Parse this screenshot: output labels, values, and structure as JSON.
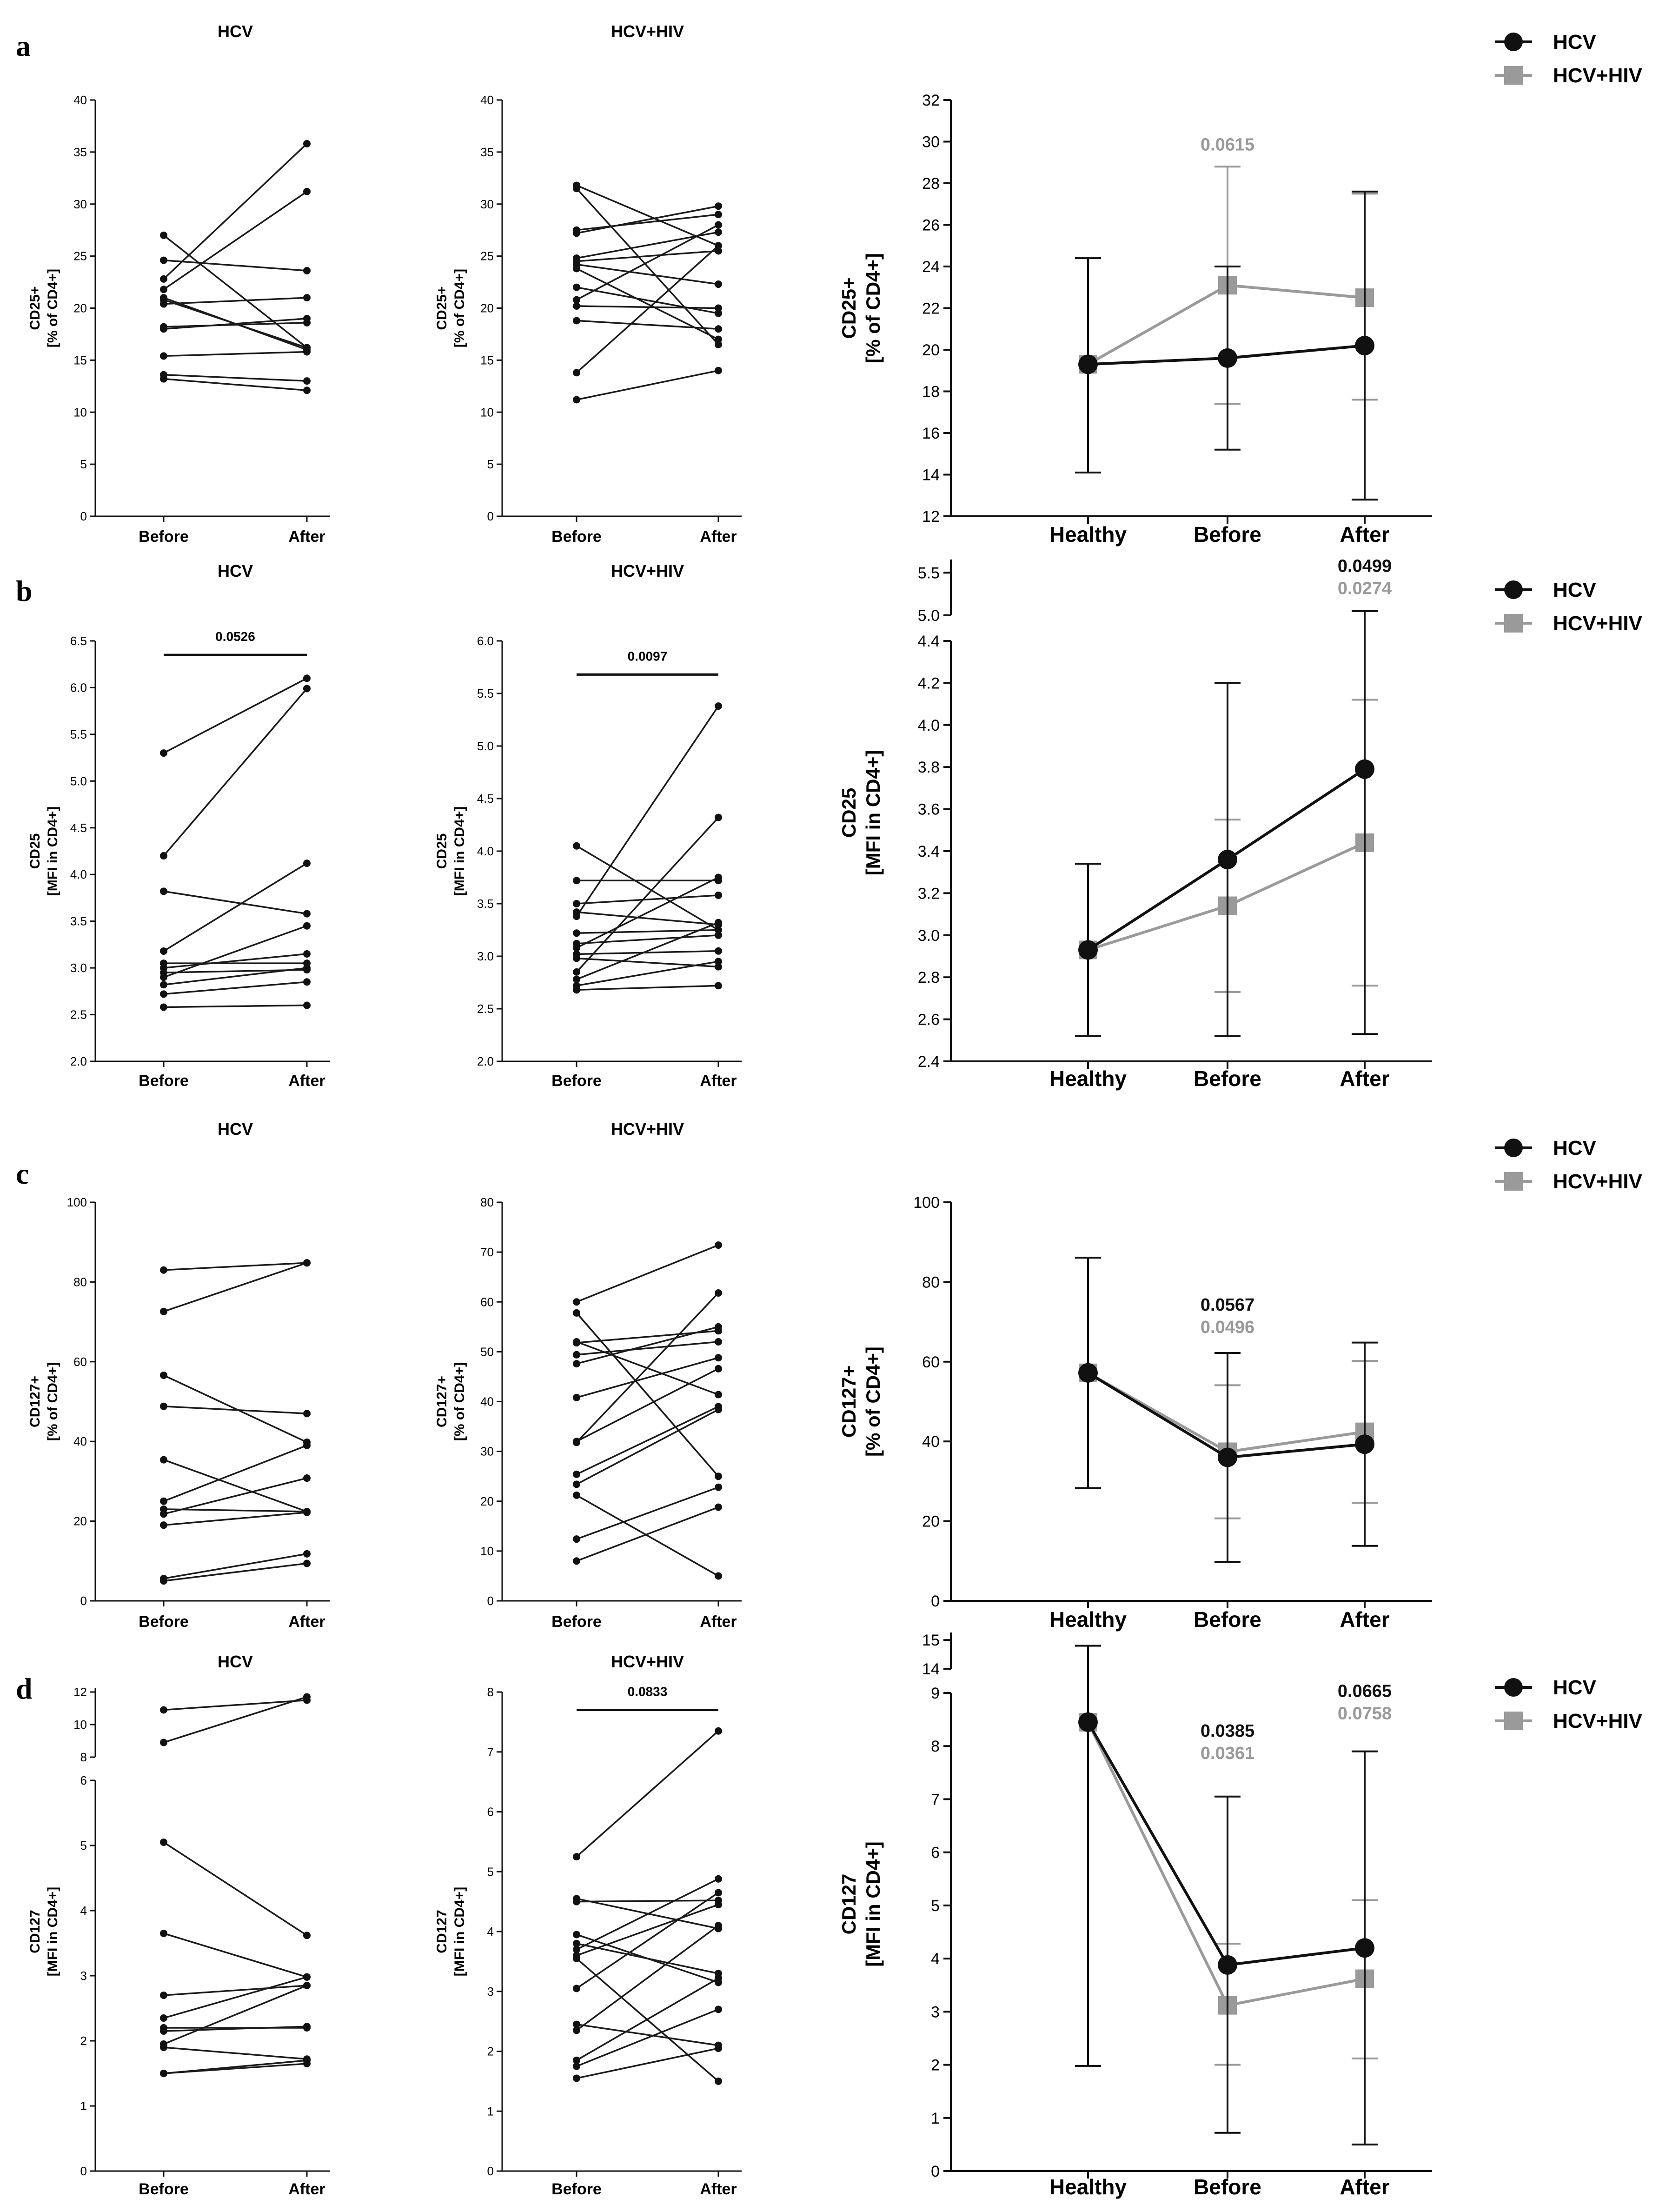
{
  "colors": {
    "hcv": "#111111",
    "hiv": "#9a9a9a",
    "axis": "#111111",
    "line": "#1a1a1a"
  },
  "legend": {
    "hcv": "HCV",
    "hiv": "HCV+HIV"
  },
  "chart_data": [
    {
      "id": "a-hcv",
      "type": "line",
      "panel": "a",
      "title": "HCV",
      "ylabel": [
        "CD25+",
        "[% of CD4+]"
      ],
      "categories": [
        "Before",
        "After"
      ],
      "ylim": [
        0,
        40
      ],
      "yticks": [
        0,
        5,
        10,
        15,
        20,
        25,
        30,
        35,
        40
      ],
      "pairs": [
        [
          27.0,
          16.2
        ],
        [
          24.6,
          23.6
        ],
        [
          22.8,
          35.8
        ],
        [
          21.8,
          31.2
        ],
        [
          20.8,
          16.2
        ],
        [
          20.4,
          21.0
        ],
        [
          18.2,
          18.6
        ],
        [
          18.0,
          19.0
        ],
        [
          15.4,
          15.8
        ],
        [
          13.6,
          13.0
        ],
        [
          13.2,
          12.1
        ],
        [
          21.0,
          16.0
        ]
      ],
      "bracket": null
    },
    {
      "id": "a-hiv",
      "type": "line",
      "panel": "a",
      "title": "HCV+HIV",
      "ylabel": [
        "CD25+",
        "[% of CD4+]"
      ],
      "categories": [
        "Before",
        "After"
      ],
      "ylim": [
        0,
        40
      ],
      "yticks": [
        0,
        5,
        10,
        15,
        20,
        25,
        30,
        35,
        40
      ],
      "pairs": [
        [
          31.8,
          26.0
        ],
        [
          31.5,
          16.5
        ],
        [
          27.5,
          29.0
        ],
        [
          27.2,
          29.8
        ],
        [
          24.8,
          27.3
        ],
        [
          24.5,
          25.5
        ],
        [
          24.2,
          22.3
        ],
        [
          23.8,
          17.0
        ],
        [
          22.0,
          19.5
        ],
        [
          20.8,
          28.0
        ],
        [
          20.2,
          20.0
        ],
        [
          18.8,
          18.0
        ],
        [
          13.8,
          26.0
        ],
        [
          11.2,
          14.0
        ]
      ],
      "bracket": null
    },
    {
      "id": "a-sum",
      "type": "line",
      "panel": "a",
      "title": "",
      "ylabel": [
        "CD25+",
        "[% of CD4+]"
      ],
      "categories": [
        "Healthy",
        "Before",
        "After"
      ],
      "ylim": [
        12,
        32
      ],
      "yticks": [
        12,
        14,
        16,
        18,
        20,
        22,
        24,
        26,
        28,
        30,
        32
      ],
      "break": null,
      "series": [
        {
          "name": "HCV",
          "values": [
            19.3,
            19.6,
            20.2
          ],
          "err_low": [
            14.1,
            15.2,
            12.8
          ],
          "err_high": [
            24.4,
            24.0,
            27.6
          ]
        },
        {
          "name": "HCV+HIV",
          "values": [
            19.3,
            23.1,
            22.5
          ],
          "err_low": [
            14.1,
            17.4,
            17.6
          ],
          "err_high": [
            24.4,
            28.8,
            27.5
          ]
        }
      ],
      "annotations": [
        {
          "cat": 1,
          "hcv": "",
          "hiv": "0.0615",
          "y": 30.2
        }
      ]
    },
    {
      "id": "b-hcv",
      "type": "line",
      "panel": "b",
      "title": "HCV",
      "ylabel": [
        "CD25",
        "[MFI in CD4+]"
      ],
      "categories": [
        "Before",
        "After"
      ],
      "ylim": [
        2.0,
        6.5
      ],
      "yticks": [
        2.0,
        2.5,
        3.0,
        3.5,
        4.0,
        4.5,
        5.0,
        5.5,
        6.0,
        6.5
      ],
      "pairs": [
        [
          5.3,
          6.1
        ],
        [
          4.2,
          5.99
        ],
        [
          3.82,
          3.58
        ],
        [
          3.18,
          4.12
        ],
        [
          3.05,
          3.05
        ],
        [
          3.0,
          3.15
        ],
        [
          2.95,
          2.98
        ],
        [
          2.9,
          3.45
        ],
        [
          2.82,
          3.0
        ],
        [
          2.72,
          2.85
        ],
        [
          2.58,
          2.6
        ]
      ],
      "bracket": {
        "label": "0.0526",
        "y": 6.35
      }
    },
    {
      "id": "b-hiv",
      "type": "line",
      "panel": "b",
      "title": "HCV+HIV",
      "ylabel": [
        "CD25",
        "[MFI in CD4+]"
      ],
      "categories": [
        "Before",
        "After"
      ],
      "ylim": [
        2.0,
        6.0
      ],
      "yticks": [
        2.0,
        2.5,
        3.0,
        3.5,
        4.0,
        4.5,
        5.0,
        5.5,
        6.0
      ],
      "pairs": [
        [
          4.05,
          3.25
        ],
        [
          3.72,
          3.72
        ],
        [
          3.5,
          3.58
        ],
        [
          3.42,
          3.3
        ],
        [
          3.38,
          5.38
        ],
        [
          3.22,
          3.25
        ],
        [
          3.12,
          3.2
        ],
        [
          3.08,
          3.75
        ],
        [
          3.02,
          3.05
        ],
        [
          2.98,
          2.9
        ],
        [
          2.85,
          4.32
        ],
        [
          2.78,
          3.32
        ],
        [
          2.72,
          2.95
        ],
        [
          2.68,
          2.72
        ]
      ],
      "bracket": {
        "label": "0.0097",
        "y": 5.68
      }
    },
    {
      "id": "b-sum",
      "type": "line",
      "panel": "b",
      "title": "",
      "ylabel": [
        "CD25",
        "[MFI in CD4+]"
      ],
      "categories": [
        "Healthy",
        "Before",
        "After"
      ],
      "ylim": [
        2.4,
        4.4
      ],
      "yticks": [
        2.4,
        2.6,
        2.8,
        3.0,
        3.2,
        3.4,
        3.6,
        3.8,
        4.0,
        4.2,
        4.4
      ],
      "break": {
        "upper_ticks": [
          5.0,
          5.5
        ],
        "upper_range": [
          5.0,
          5.6
        ]
      },
      "series": [
        {
          "name": "HCV",
          "values": [
            2.93,
            3.36,
            3.79
          ],
          "err_low": [
            2.52,
            2.52,
            2.53
          ],
          "err_high": [
            3.34,
            4.2,
            5.05
          ]
        },
        {
          "name": "HCV+HIV",
          "values": [
            2.93,
            3.14,
            3.44
          ],
          "err_low": [
            2.52,
            2.73,
            2.76
          ],
          "err_high": [
            3.34,
            3.55,
            4.12
          ]
        }
      ],
      "annotations": [
        {
          "cat": 2,
          "hcv": "0.0499",
          "hiv": "0.0274",
          "y": 5.4
        }
      ]
    },
    {
      "id": "c-hcv",
      "type": "line",
      "panel": "c",
      "title": "HCV",
      "ylabel": [
        "CD127+",
        "[% of CD4+]"
      ],
      "categories": [
        "Before",
        "After"
      ],
      "ylim": [
        0,
        100
      ],
      "yticks": [
        0,
        20,
        40,
        60,
        80,
        100
      ],
      "pairs": [
        [
          83.0,
          84.8
        ],
        [
          72.6,
          84.8
        ],
        [
          56.6,
          39.8
        ],
        [
          48.8,
          47.0
        ],
        [
          35.4,
          22.4
        ],
        [
          25.0,
          39.0
        ],
        [
          23.0,
          22.4
        ],
        [
          21.8,
          30.8
        ],
        [
          19.0,
          22.2
        ],
        [
          5.6,
          11.8
        ],
        [
          5.0,
          9.4
        ]
      ],
      "bracket": null
    },
    {
      "id": "c-hiv",
      "type": "line",
      "panel": "c",
      "title": "HCV+HIV",
      "ylabel": [
        "CD127+",
        "[% of CD4+]"
      ],
      "categories": [
        "Before",
        "After"
      ],
      "ylim": [
        0,
        80
      ],
      "yticks": [
        0,
        10,
        20,
        30,
        40,
        50,
        60,
        70,
        80
      ],
      "pairs": [
        [
          60.0,
          71.4
        ],
        [
          57.8,
          25.0
        ],
        [
          52.0,
          41.4
        ],
        [
          51.8,
          54.2
        ],
        [
          49.4,
          52.0
        ],
        [
          47.6,
          55.0
        ],
        [
          40.8,
          48.8
        ],
        [
          32.0,
          46.6
        ],
        [
          31.8,
          61.8
        ],
        [
          25.4,
          39.0
        ],
        [
          23.4,
          38.4
        ],
        [
          21.2,
          5.0
        ],
        [
          12.4,
          22.8
        ],
        [
          8.0,
          18.8
        ]
      ],
      "bracket": null
    },
    {
      "id": "c-sum",
      "type": "line",
      "panel": "c",
      "title": "",
      "ylabel": [
        "CD127+",
        "[% of CD4+]"
      ],
      "categories": [
        "Healthy",
        "Before",
        "After"
      ],
      "ylim": [
        0,
        100
      ],
      "yticks": [
        0,
        20,
        40,
        60,
        80,
        100
      ],
      "break": null,
      "series": [
        {
          "name": "HCV",
          "values": [
            57.2,
            36.0,
            39.3
          ],
          "err_low": [
            28.3,
            9.8,
            13.8
          ],
          "err_high": [
            86.1,
            62.2,
            64.8
          ]
        },
        {
          "name": "HCV+HIV",
          "values": [
            57.2,
            37.4,
            42.4
          ],
          "err_low": [
            28.3,
            20.7,
            24.6
          ],
          "err_high": [
            86.1,
            54.1,
            60.2
          ]
        }
      ],
      "annotations": [
        {
          "cat": 1,
          "hcv": "0.0567",
          "hiv": "0.0496",
          "y": 70.5
        }
      ]
    },
    {
      "id": "d-hcv",
      "type": "line",
      "panel": "d",
      "title": "HCV",
      "ylabel": [
        "CD127",
        "[MFI in CD4+]"
      ],
      "categories": [
        "Before",
        "After"
      ],
      "ylim": [
        0,
        6
      ],
      "yticks": [
        0,
        1,
        2,
        3,
        4,
        5,
        6
      ],
      "break": {
        "upper_ticks": [
          8,
          10,
          12
        ],
        "upper_range": [
          8,
          12
        ]
      },
      "pairs": [
        [
          10.9,
          11.5
        ],
        [
          8.9,
          11.7
        ],
        [
          5.05,
          3.62
        ],
        [
          3.65,
          2.98
        ],
        [
          2.7,
          2.85
        ],
        [
          2.35,
          2.98
        ],
        [
          2.2,
          2.2
        ],
        [
          2.15,
          2.22
        ],
        [
          1.95,
          2.85
        ],
        [
          1.9,
          1.72
        ],
        [
          1.5,
          1.65
        ],
        [
          1.5,
          1.7
        ]
      ],
      "bracket": null
    },
    {
      "id": "d-hiv",
      "type": "line",
      "panel": "d",
      "title": "HCV+HIV",
      "ylabel": [
        "CD127",
        "[MFI in CD4+]"
      ],
      "categories": [
        "Before",
        "After"
      ],
      "ylim": [
        0,
        8
      ],
      "yticks": [
        0,
        1,
        2,
        3,
        4,
        5,
        6,
        7,
        8
      ],
      "pairs": [
        [
          5.25,
          7.35
        ],
        [
          4.55,
          4.05
        ],
        [
          4.5,
          4.52
        ],
        [
          3.95,
          3.15
        ],
        [
          3.8,
          3.3
        ],
        [
          3.7,
          4.88
        ],
        [
          3.6,
          4.45
        ],
        [
          3.55,
          1.5
        ],
        [
          3.05,
          4.65
        ],
        [
          2.45,
          2.1
        ],
        [
          2.35,
          4.1
        ],
        [
          1.85,
          3.22
        ],
        [
          1.75,
          2.7
        ],
        [
          1.55,
          2.05
        ]
      ],
      "bracket": {
        "label": "0.0833",
        "y": 7.7
      }
    },
    {
      "id": "d-sum",
      "type": "line",
      "panel": "d",
      "title": "",
      "ylabel": [
        "CD127",
        "[MFI in CD4+]"
      ],
      "categories": [
        "Healthy",
        "Before",
        "After"
      ],
      "ylim": [
        0,
        9
      ],
      "yticks": [
        0,
        1,
        2,
        3,
        4,
        5,
        6,
        7,
        8,
        9
      ],
      "break": {
        "upper_ticks": [
          14,
          15
        ],
        "upper_range": [
          14,
          15.1
        ]
      },
      "series": [
        {
          "name": "HCV",
          "values": [
            8.45,
            3.88,
            4.2
          ],
          "err_low": [
            1.98,
            0.72,
            0.5
          ],
          "err_high": [
            14.8,
            7.05,
            7.9
          ]
        },
        {
          "name": "HCV+HIV",
          "values": [
            8.45,
            3.12,
            3.62
          ],
          "err_low": [
            1.98,
            2.0,
            2.12
          ],
          "err_high": [
            14.8,
            4.28,
            5.1
          ]
        }
      ],
      "annotations": [
        {
          "cat": 1,
          "hcv": "0.0385",
          "hiv": "0.0361",
          "y": 8.0
        },
        {
          "cat": 2,
          "hcv": "0.0665",
          "hiv": "0.0758",
          "y": 8.75
        }
      ]
    }
  ]
}
